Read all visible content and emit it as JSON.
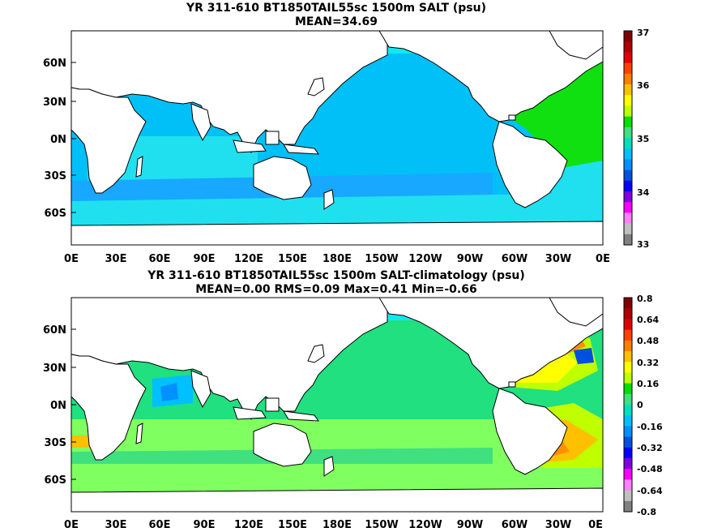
{
  "panel1": {
    "title": "YR 311-610 BT1850TAIL55sc 1500m SALT (psu)",
    "subtitle": "MEAN=34.69",
    "lat_labels": [
      "60N",
      "30N",
      "0N",
      "30S",
      "60S"
    ],
    "lon_labels": [
      "0E",
      "30E",
      "60E",
      "90E",
      "120E",
      "150E",
      "180E",
      "150W",
      "120W",
      "90W",
      "60W",
      "30W",
      "0E"
    ],
    "colorbar": {
      "labels": [
        "37",
        "36",
        "35",
        "34",
        "33"
      ],
      "colors": [
        "#800000",
        "#b00000",
        "#e00000",
        "#ff4000",
        "#ff8000",
        "#ffc000",
        "#ffff00",
        "#c0ff00",
        "#00e000",
        "#40e080",
        "#00e0c0",
        "#00c0ff",
        "#0090ff",
        "#0050e0",
        "#0000ff",
        "#8000e0",
        "#ff00ff",
        "#ff80ff",
        "#c0c0c0",
        "#808080"
      ]
    },
    "colors": {
      "ocean_main": "#00c0f8",
      "ocean_south": "#18a8ff",
      "atlantic": "#10e010",
      "indian": "#20e0f0",
      "arctic": "#10e8f0",
      "land": "#ffffff"
    }
  },
  "panel2": {
    "title": "YR 311-610 BT1850TAIL55sc 1500m SALT-climatology (psu)",
    "subtitle": "MEAN=0.00   RMS=0.09   Max=0.41   Min=-0.66",
    "lat_labels": [
      "60N",
      "30N",
      "0N",
      "30S",
      "60S"
    ],
    "lon_labels": [
      "0E",
      "30E",
      "60E",
      "90E",
      "120E",
      "150E",
      "180E",
      "150W",
      "120W",
      "90W",
      "60W",
      "30W",
      "0E"
    ],
    "colorbar": {
      "labels": [
        "0.8",
        "0.64",
        "0.48",
        "0.32",
        "0.16",
        "0",
        "-0.16",
        "-0.32",
        "-0.48",
        "-0.64",
        "-0.8"
      ],
      "colors": [
        "#800000",
        "#b00000",
        "#e00000",
        "#ff4000",
        "#ff8000",
        "#ffc000",
        "#ffff00",
        "#c0ff00",
        "#00e000",
        "#40e080",
        "#00e0c0",
        "#00c0ff",
        "#0090ff",
        "#0050e0",
        "#0000ff",
        "#8000e0",
        "#ff00ff",
        "#ff80ff",
        "#c0c0c0",
        "#808080"
      ]
    },
    "colors": {
      "ocean_main": "#20e080",
      "ocean_south": "#80ff60",
      "atlantic_north": "#ffff00",
      "atlantic_south": "#ff9000",
      "arctic": "#10e8f0",
      "land": "#ffffff"
    }
  }
}
